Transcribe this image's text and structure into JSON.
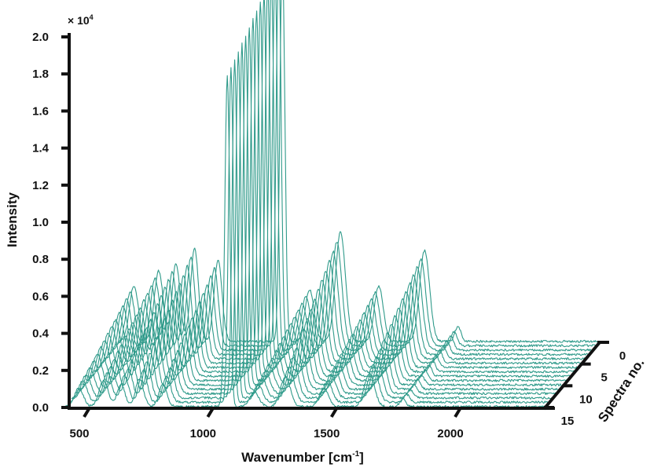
{
  "chart_data": {
    "type": "line",
    "subtype": "3d-waterfall",
    "xlabel": "Wavenumber [cm",
    "xlabel_sup": "-1",
    "xlabel_end": "]",
    "ylabel": "Intensity",
    "zlabel": "Spectra no.",
    "y_multiplier": "× 10",
    "y_multiplier_exp": "4",
    "xlim": [
      400,
      2350
    ],
    "ylim": [
      0,
      2.0
    ],
    "x_ticks": [
      "500",
      "1000",
      "1500",
      "2000"
    ],
    "y_ticks": [
      "0.0",
      "0.2",
      "0.4",
      "0.6",
      "0.8",
      "1.0",
      "1.2",
      "1.4",
      "1.6",
      "1.8",
      "2.0"
    ],
    "z_ticks": [
      "0",
      "5",
      "10",
      "15"
    ],
    "spectra_count": 16,
    "line_color": "#2f9a8a",
    "grid": false,
    "peaks": [
      {
        "center": 460,
        "height_spectrum_0": 0.3,
        "height_spectrum_15": 0.1,
        "width": 18
      },
      {
        "center": 560,
        "height_spectrum_0": 0.38,
        "height_spectrum_15": 0.14,
        "width": 18
      },
      {
        "center": 630,
        "height_spectrum_0": 0.42,
        "height_spectrum_15": 0.12,
        "width": 16
      },
      {
        "center": 705,
        "height_spectrum_0": 0.5,
        "height_spectrum_15": 0.15,
        "width": 16
      },
      {
        "center": 800,
        "height_spectrum_0": 0.44,
        "height_spectrum_15": 0.12,
        "width": 16
      },
      {
        "center": 1060,
        "height_spectrum_0": 2.1,
        "height_spectrum_15": 1.78,
        "width": 10
      },
      {
        "center": 1170,
        "height_spectrum_0": 0.28,
        "height_spectrum_15": 0.08,
        "width": 18
      },
      {
        "center": 1295,
        "height_spectrum_0": 0.59,
        "height_spectrum_15": 0.16,
        "width": 20
      },
      {
        "center": 1450,
        "height_spectrum_0": 0.3,
        "height_spectrum_15": 0.1,
        "width": 18
      },
      {
        "center": 1635,
        "height_spectrum_0": 0.49,
        "height_spectrum_15": 0.18,
        "width": 20
      },
      {
        "center": 1770,
        "height_spectrum_0": 0.08,
        "height_spectrum_15": 0.04,
        "width": 12
      }
    ]
  }
}
